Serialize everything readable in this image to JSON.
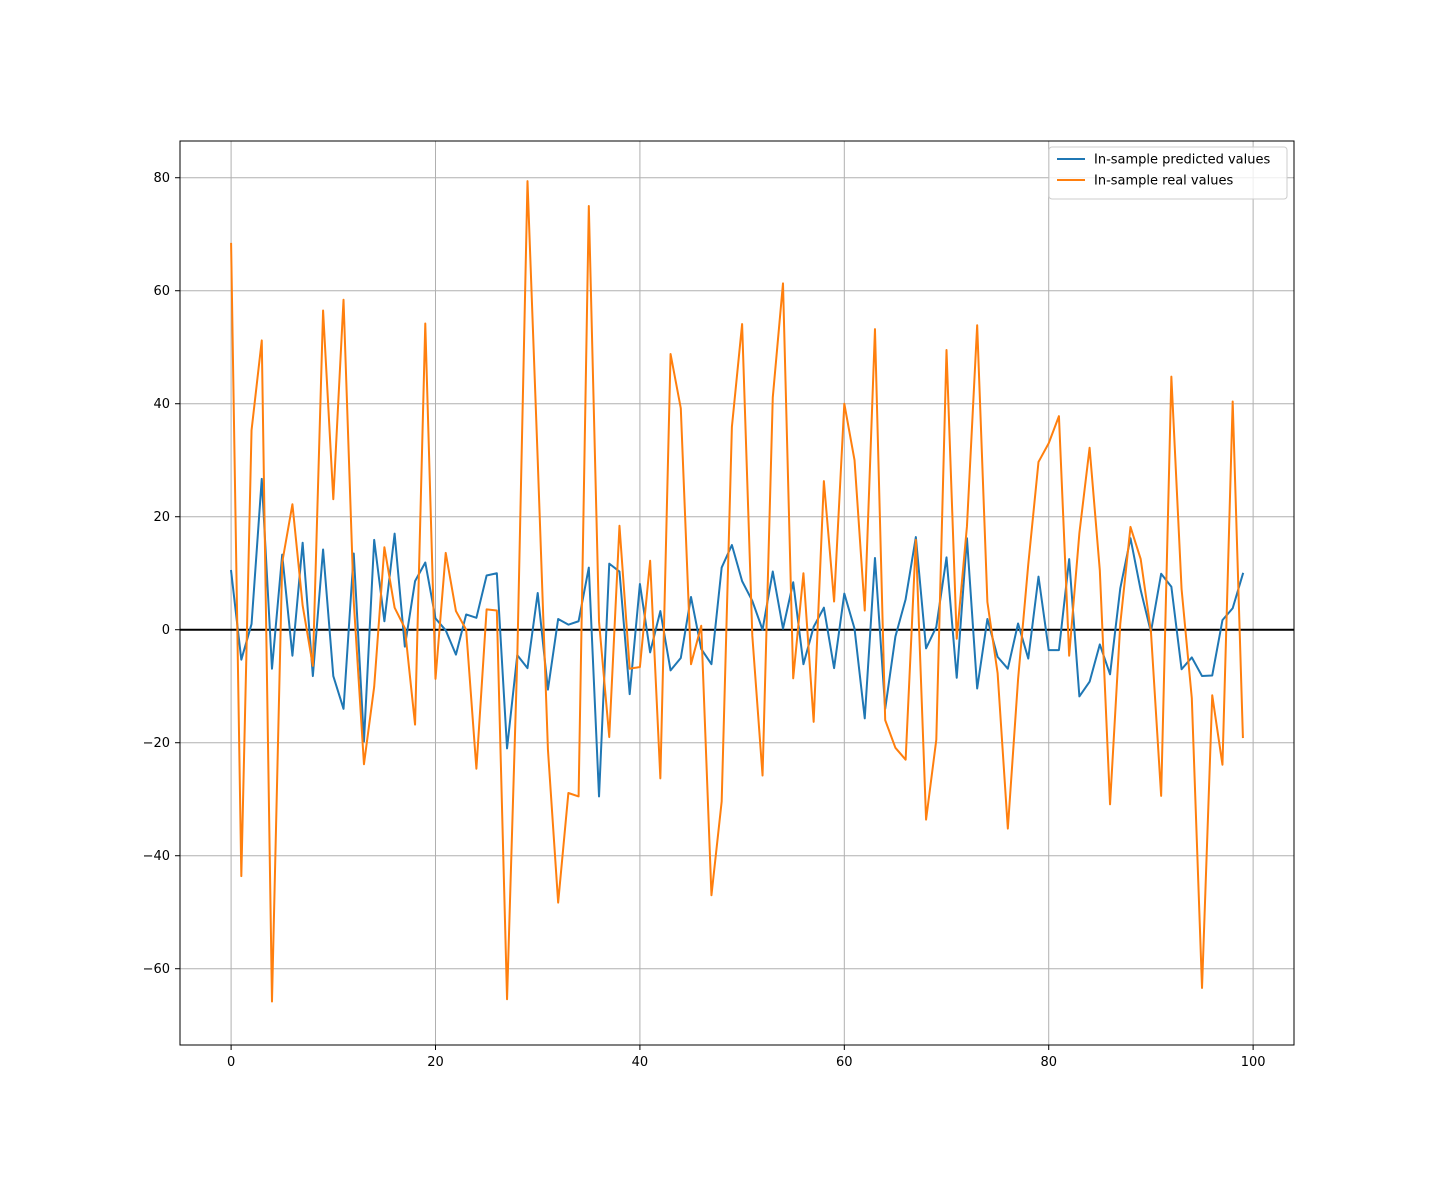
{
  "chart_data": {
    "type": "line",
    "title": "",
    "xlabel": "",
    "ylabel": "",
    "xlim": [
      -5,
      104
    ],
    "ylim": [
      -73.5,
      86.5
    ],
    "xticks": [
      0,
      20,
      40,
      60,
      80,
      100
    ],
    "xtick_labels": [
      "0",
      "20",
      "40",
      "60",
      "80",
      "100"
    ],
    "yticks": [
      -60,
      -40,
      -20,
      0,
      20,
      40,
      60,
      80
    ],
    "ytick_labels": [
      "−60",
      "−40",
      "−20",
      "0",
      "20",
      "40",
      "60",
      "80"
    ],
    "grid": true,
    "legend_position": "top-right",
    "hline": 0,
    "series": [
      {
        "name": "In-sample predicted values",
        "color": "#1f77b4",
        "x": [
          0,
          1,
          2,
          3,
          4,
          5,
          6,
          7,
          8,
          9,
          10,
          11,
          12,
          13,
          14,
          15,
          16,
          17,
          18,
          19,
          20,
          21,
          22,
          23,
          24,
          25,
          26,
          27,
          28,
          29,
          30,
          31,
          32,
          33,
          34,
          35,
          36,
          37,
          38,
          39,
          40,
          41,
          42,
          43,
          44,
          45,
          46,
          47,
          48,
          49,
          50,
          51,
          52,
          53,
          54,
          55,
          56,
          57,
          58,
          59,
          60,
          61,
          62,
          63,
          64,
          65,
          66,
          67,
          68,
          69,
          70,
          71,
          72,
          73,
          74,
          75,
          76,
          77,
          78,
          79,
          80,
          81,
          82,
          83,
          84,
          85,
          86,
          87,
          88,
          89,
          90,
          91,
          92,
          93,
          94,
          95,
          96,
          97,
          98,
          99
        ],
        "values": [
          10.4,
          -5.3,
          1.0,
          26.7,
          -6.9,
          13.3,
          -4.6,
          15.4,
          -8.2,
          14.2,
          -8.2,
          -14.0,
          13.5,
          -19.8,
          15.9,
          1.5,
          17.0,
          -3.0,
          8.6,
          11.9,
          2.0,
          -0.1,
          -4.4,
          2.7,
          2.1,
          9.6,
          10.0,
          -21.0,
          -4.5,
          -6.8,
          6.5,
          -10.6,
          1.9,
          0.9,
          1.5,
          11.0,
          -29.5,
          11.7,
          10.3,
          -11.4,
          8.1,
          -4.0,
          3.3,
          -7.2,
          -5.0,
          5.8,
          -3.4,
          -6.1,
          11.0,
          15.0,
          8.6,
          5.1,
          0.0,
          10.3,
          0.2,
          8.4,
          -6.1,
          0.5,
          3.9,
          -6.8,
          6.4,
          0.2,
          -15.7,
          12.7,
          -14.0,
          -1.2,
          5.4,
          16.4,
          -3.3,
          0.5,
          12.8,
          -8.5,
          16.2,
          -10.4,
          1.9,
          -4.8,
          -6.9,
          1.1,
          -5.1,
          9.4,
          -3.6,
          -3.6,
          12.5,
          -11.8,
          -9.2,
          -2.6,
          -7.9,
          7.3,
          16.2,
          7.0,
          -0.4,
          9.9,
          7.6,
          -7.0,
          -4.9,
          -8.2,
          -8.1,
          1.7,
          3.8,
          9.9
        ]
      },
      {
        "name": "In-sample real values",
        "color": "#ff7f0e",
        "x": [
          0,
          1,
          2,
          3,
          4,
          5,
          6,
          7,
          8,
          9,
          10,
          11,
          12,
          13,
          14,
          15,
          16,
          17,
          18,
          19,
          20,
          21,
          22,
          23,
          24,
          25,
          26,
          27,
          28,
          29,
          30,
          31,
          32,
          33,
          34,
          35,
          36,
          37,
          38,
          39,
          40,
          41,
          42,
          43,
          44,
          45,
          46,
          47,
          48,
          49,
          50,
          51,
          52,
          53,
          54,
          55,
          56,
          57,
          58,
          59,
          60,
          61,
          62,
          63,
          64,
          65,
          66,
          67,
          68,
          69,
          70,
          71,
          72,
          73,
          74,
          75,
          76,
          77,
          78,
          79,
          80,
          81,
          82,
          83,
          84,
          85,
          86,
          87,
          88,
          89,
          90,
          91,
          92,
          93,
          94,
          95,
          96,
          97,
          98,
          99
        ],
        "values": [
          68.3,
          -43.6,
          35.3,
          51.2,
          -65.8,
          11.9,
          22.2,
          4.3,
          -6.4,
          56.5,
          23.1,
          58.4,
          5.0,
          -23.8,
          -10.1,
          14.6,
          3.9,
          0.3,
          -16.8,
          54.2,
          -8.7,
          13.6,
          3.3,
          0.0,
          -24.6,
          3.6,
          3.4,
          -65.4,
          -5.1,
          79.4,
          30.1,
          -21.2,
          -48.3,
          -28.9,
          -29.5,
          75.0,
          1.4,
          -19.0,
          18.4,
          -6.9,
          -6.6,
          12.2,
          -26.3,
          48.8,
          39.2,
          -6.1,
          0.7,
          -47.0,
          -30.4,
          35.9,
          54.1,
          -1.1,
          -25.8,
          41.1,
          61.3,
          -8.6,
          10.0,
          -16.3,
          26.3,
          5.0,
          40.0,
          30.0,
          3.4,
          53.2,
          -16.0,
          -20.9,
          -23.0,
          15.9,
          -33.6,
          -19.5,
          49.5,
          -1.6,
          18.3,
          53.9,
          4.9,
          -7.7,
          -35.2,
          -8.8,
          11.6,
          29.7,
          33.0,
          37.8,
          -4.6,
          17.1,
          32.2,
          10.5,
          -30.9,
          1.0,
          18.2,
          12.5,
          -0.3,
          -29.4,
          44.8,
          7.2,
          -12.1,
          -63.4,
          -11.6,
          -23.9,
          40.4,
          -19.0
        ]
      }
    ]
  }
}
